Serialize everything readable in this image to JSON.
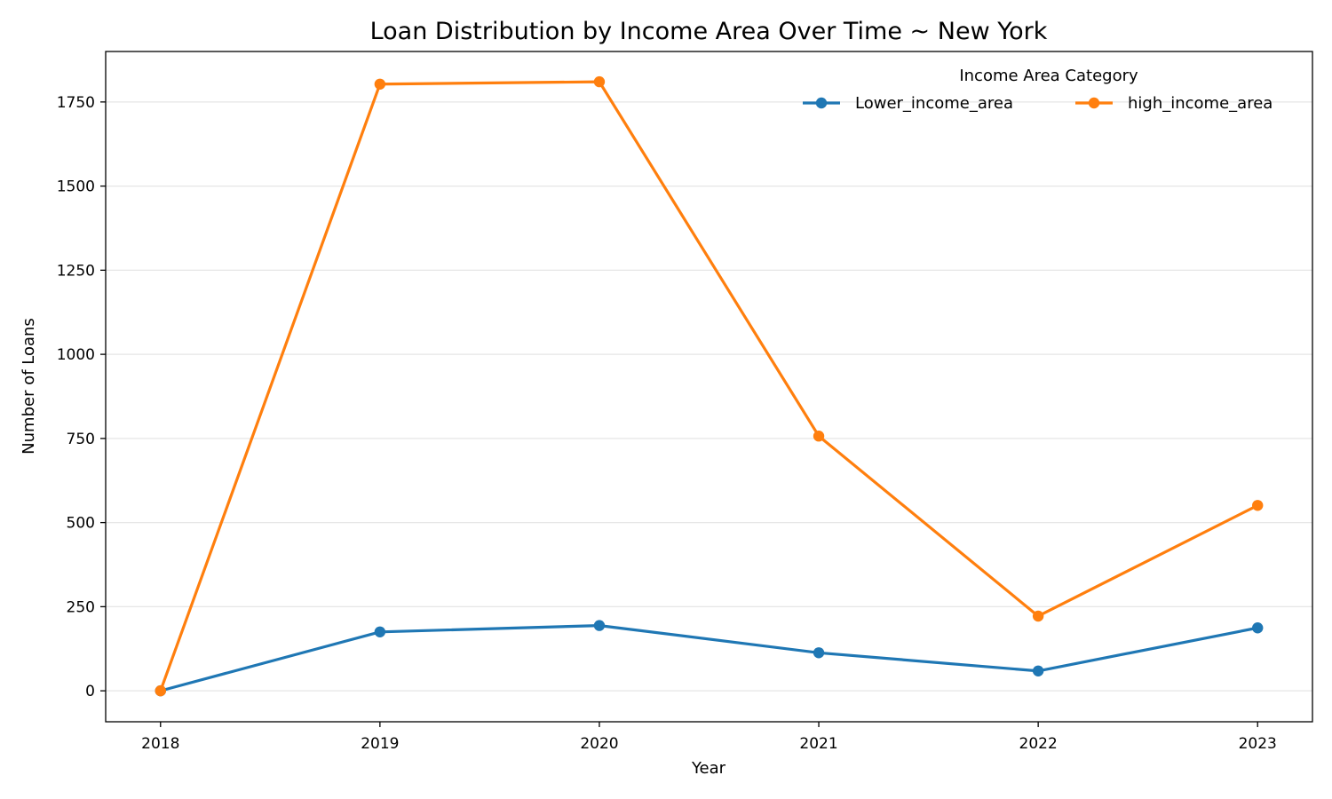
{
  "chart_data": {
    "type": "line",
    "title": "Loan Distribution by Income Area Over Time ~ New York",
    "xlabel": "Year",
    "ylabel": "Number of Loans",
    "x": [
      2018,
      2019,
      2020,
      2021,
      2022,
      2023
    ],
    "x_tick_labels": [
      "2018",
      "2019",
      "2020",
      "2021",
      "2022",
      "2023"
    ],
    "xlim": [
      2017.75,
      2023.25
    ],
    "ylim": [
      -92,
      1900
    ],
    "y_ticks": [
      0,
      250,
      500,
      750,
      1000,
      1250,
      1500,
      1750
    ],
    "y_tick_labels": [
      "0",
      "250",
      "500",
      "750",
      "1000",
      "1250",
      "1500",
      "1750"
    ],
    "grid": "y-only",
    "legend": {
      "title": "Income Area Category",
      "placement": "top-right",
      "columns": 2
    },
    "series": [
      {
        "name": "Lower_income_area",
        "color": "#1f77b4",
        "values": [
          0,
          175,
          194,
          113,
          59,
          187
        ]
      },
      {
        "name": "high_income_area",
        "color": "#ff7f0e",
        "values": [
          0,
          1803,
          1810,
          757,
          222,
          551
        ]
      }
    ]
  }
}
